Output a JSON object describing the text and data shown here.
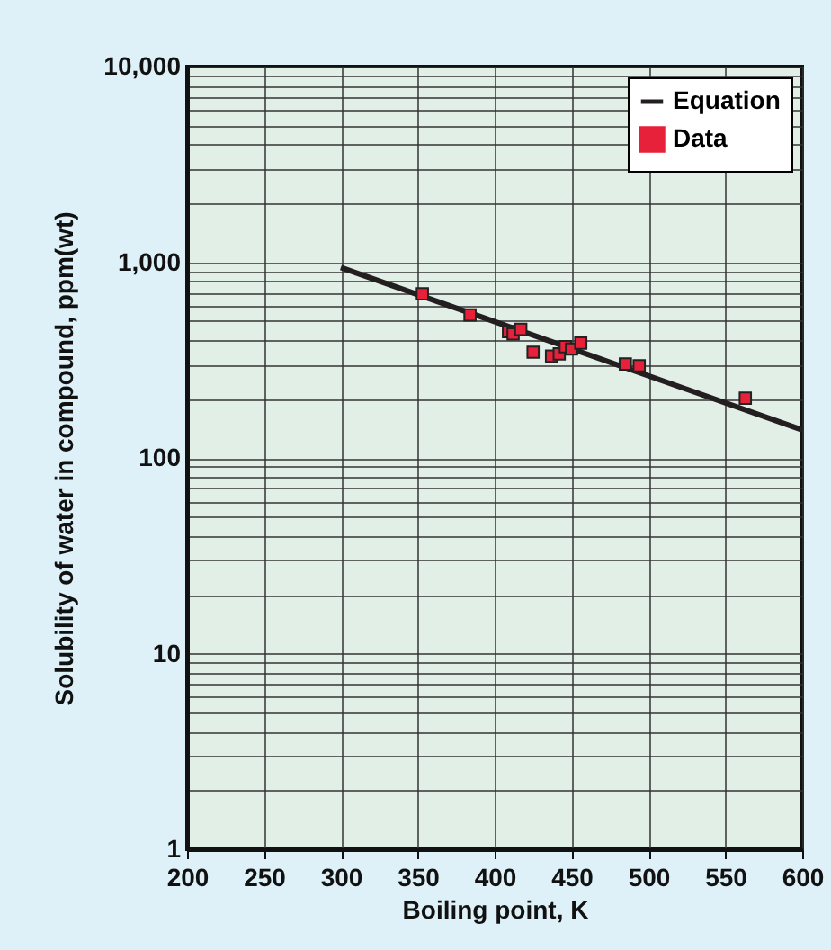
{
  "chart_data": {
    "type": "scatter",
    "xlabel": "Boiling point, K",
    "ylabel": "Solubility of water in compound, ppm(wt)",
    "log": "y",
    "grid": true,
    "legend": "top right",
    "xlim": [
      200,
      600
    ],
    "xticks": [
      200,
      250,
      300,
      350,
      400,
      450,
      500,
      550,
      600
    ],
    "ylim": [
      1,
      10000
    ],
    "yticks": [
      {
        "value": 1,
        "label": "1"
      },
      {
        "value": 2,
        "label": null
      },
      {
        "value": 3,
        "label": null
      },
      {
        "value": 4,
        "label": null
      },
      {
        "value": 5,
        "label": null
      },
      {
        "value": 6,
        "label": null
      },
      {
        "value": 7,
        "label": null
      },
      {
        "value": 8,
        "label": null
      },
      {
        "value": 9,
        "label": null
      },
      {
        "value": 10,
        "label": "10"
      },
      {
        "value": 20,
        "label": null
      },
      {
        "value": 30,
        "label": null
      },
      {
        "value": 40,
        "label": null
      },
      {
        "value": 50,
        "label": null
      },
      {
        "value": 60,
        "label": null
      },
      {
        "value": 70,
        "label": null
      },
      {
        "value": 80,
        "label": null
      },
      {
        "value": 90,
        "label": null
      },
      {
        "value": 100,
        "label": "100"
      },
      {
        "value": 200,
        "label": null
      },
      {
        "value": 300,
        "label": null
      },
      {
        "value": 400,
        "label": null
      },
      {
        "value": 500,
        "label": null
      },
      {
        "value": 600,
        "label": null
      },
      {
        "value": 700,
        "label": null
      },
      {
        "value": 800,
        "label": null
      },
      {
        "value": 900,
        "label": null
      },
      {
        "value": 1000,
        "label": "1,000"
      },
      {
        "value": 2000,
        "label": null
      },
      {
        "value": 3000,
        "label": null
      },
      {
        "value": 4000,
        "label": null
      },
      {
        "value": 5000,
        "label": null
      },
      {
        "value": 6000,
        "label": null
      },
      {
        "value": 7000,
        "label": null
      },
      {
        "value": 8000,
        "label": null
      },
      {
        "value": 9000,
        "label": null
      },
      {
        "value": 10000,
        "label": "10,000"
      }
    ],
    "series": [
      {
        "name": "Equation",
        "type": "line",
        "color": "#231f20",
        "line_style": "solid",
        "x": [
          300,
          600
        ],
        "values": [
          940,
          139
        ]
      },
      {
        "name": "Data",
        "type": "scatter",
        "color": "#e8213a",
        "marker": "square",
        "x": [
          353,
          384,
          409,
          412,
          417,
          425,
          437,
          442,
          446,
          450,
          456,
          485,
          494,
          563
        ],
        "values": [
          690,
          538,
          442,
          430,
          454,
          347,
          331,
          340,
          370,
          360,
          386,
          302,
          296,
          202
        ]
      }
    ]
  }
}
